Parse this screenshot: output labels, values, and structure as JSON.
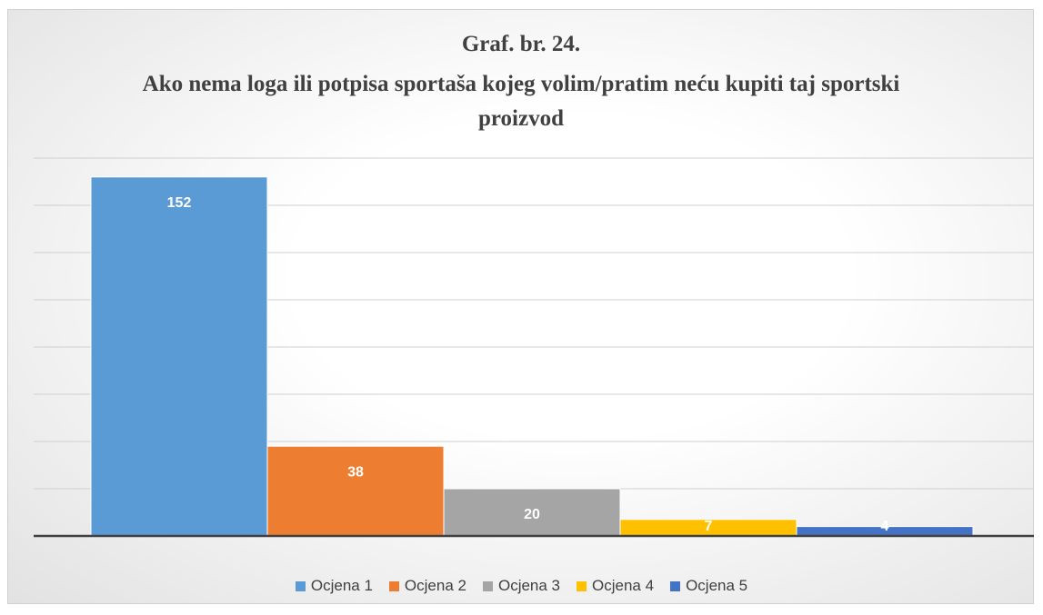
{
  "chart_data": {
    "type": "bar",
    "title": "Graf. br. 24.",
    "subtitle": "Ako nema loga ili potpisa sportaša kojeg volim/pratim neću kupiti taj sportski proizvod",
    "series": [
      {
        "name": "Ocjena 1",
        "color": "#5b9bd5",
        "values": [
          152
        ]
      },
      {
        "name": "Ocjena 2",
        "color": "#ed7d31",
        "values": [
          38
        ]
      },
      {
        "name": "Ocjena 3",
        "color": "#a5a5a5",
        "values": [
          20
        ]
      },
      {
        "name": "Ocjena 4",
        "color": "#ffc000",
        "values": [
          7
        ]
      },
      {
        "name": "Ocjena 5",
        "color": "#4472c4",
        "values": [
          4
        ]
      }
    ],
    "ylim": [
      0,
      160
    ],
    "yticks": [
      0,
      20,
      40,
      60,
      80,
      100,
      120,
      140,
      160
    ],
    "grid": true,
    "legend": "bottom"
  }
}
